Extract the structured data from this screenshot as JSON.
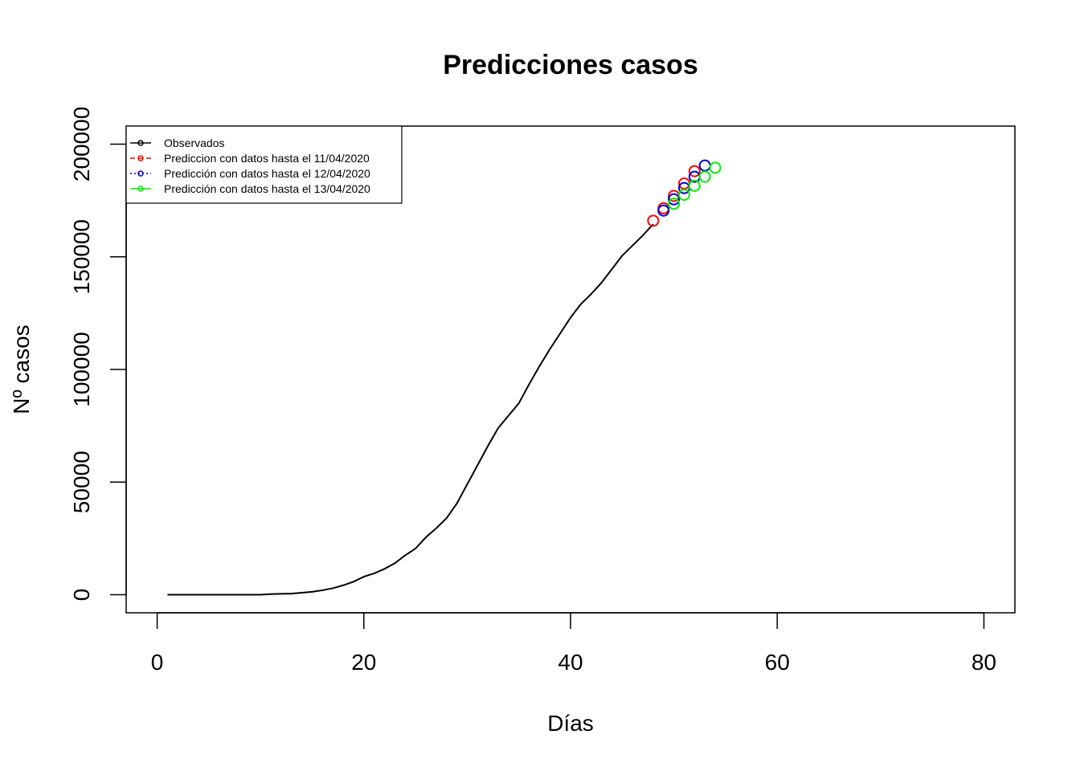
{
  "chart_data": {
    "type": "line",
    "title": "Predicciones casos",
    "xlabel": "Días",
    "ylabel": "Nº casos",
    "xlim": [
      -3,
      83
    ],
    "ylim": [
      -8000,
      208000
    ],
    "x_ticks": [
      0,
      20,
      40,
      60,
      80
    ],
    "y_ticks": [
      0,
      50000,
      100000,
      150000,
      200000
    ],
    "legend_position": "top-left",
    "grid": false,
    "series": [
      {
        "name": "Observados",
        "color": "#000000",
        "style": "line",
        "x": [
          1,
          2,
          3,
          4,
          5,
          6,
          7,
          8,
          9,
          10,
          11,
          12,
          13,
          14,
          15,
          16,
          17,
          18,
          19,
          20,
          21,
          22,
          23,
          24,
          25,
          26,
          27,
          28,
          29,
          30,
          31,
          32,
          33,
          34,
          35,
          36,
          37,
          38,
          39,
          40,
          41,
          42,
          43,
          44,
          45,
          46,
          47,
          48
        ],
        "y": [
          0,
          0,
          0,
          0,
          0,
          0,
          0,
          0,
          0,
          0,
          300,
          400,
          500,
          900,
          1300,
          2000,
          2900,
          4200,
          5800,
          8000,
          9500,
          11500,
          14000,
          17500,
          20500,
          25500,
          29500,
          34000,
          40500,
          49000,
          57500,
          66000,
          74000,
          79500,
          85000,
          93500,
          101500,
          109000,
          116000,
          123000,
          129000,
          133500,
          138500,
          144500,
          150500,
          155000,
          159500,
          164500
        ]
      },
      {
        "name": "Prediccion con datos hasta el 11/04/2020",
        "color": "#ff0000",
        "style": "points",
        "x": [
          48,
          49,
          50,
          51,
          52
        ],
        "y": [
          166000,
          171500,
          177000,
          182500,
          188000
        ]
      },
      {
        "name": "Predicción con datos hasta el 12/04/2020",
        "color": "#0000cd",
        "style": "points",
        "x": [
          49,
          50,
          51,
          52,
          53
        ],
        "y": [
          170500,
          175500,
          180500,
          185500,
          190500
        ]
      },
      {
        "name": "Predicción con datos hasta el 13/04/2020",
        "color": "#00ee00",
        "style": "points",
        "x": [
          50,
          51,
          52,
          53,
          54
        ],
        "y": [
          173500,
          177500,
          181500,
          185500,
          189500
        ]
      }
    ]
  }
}
